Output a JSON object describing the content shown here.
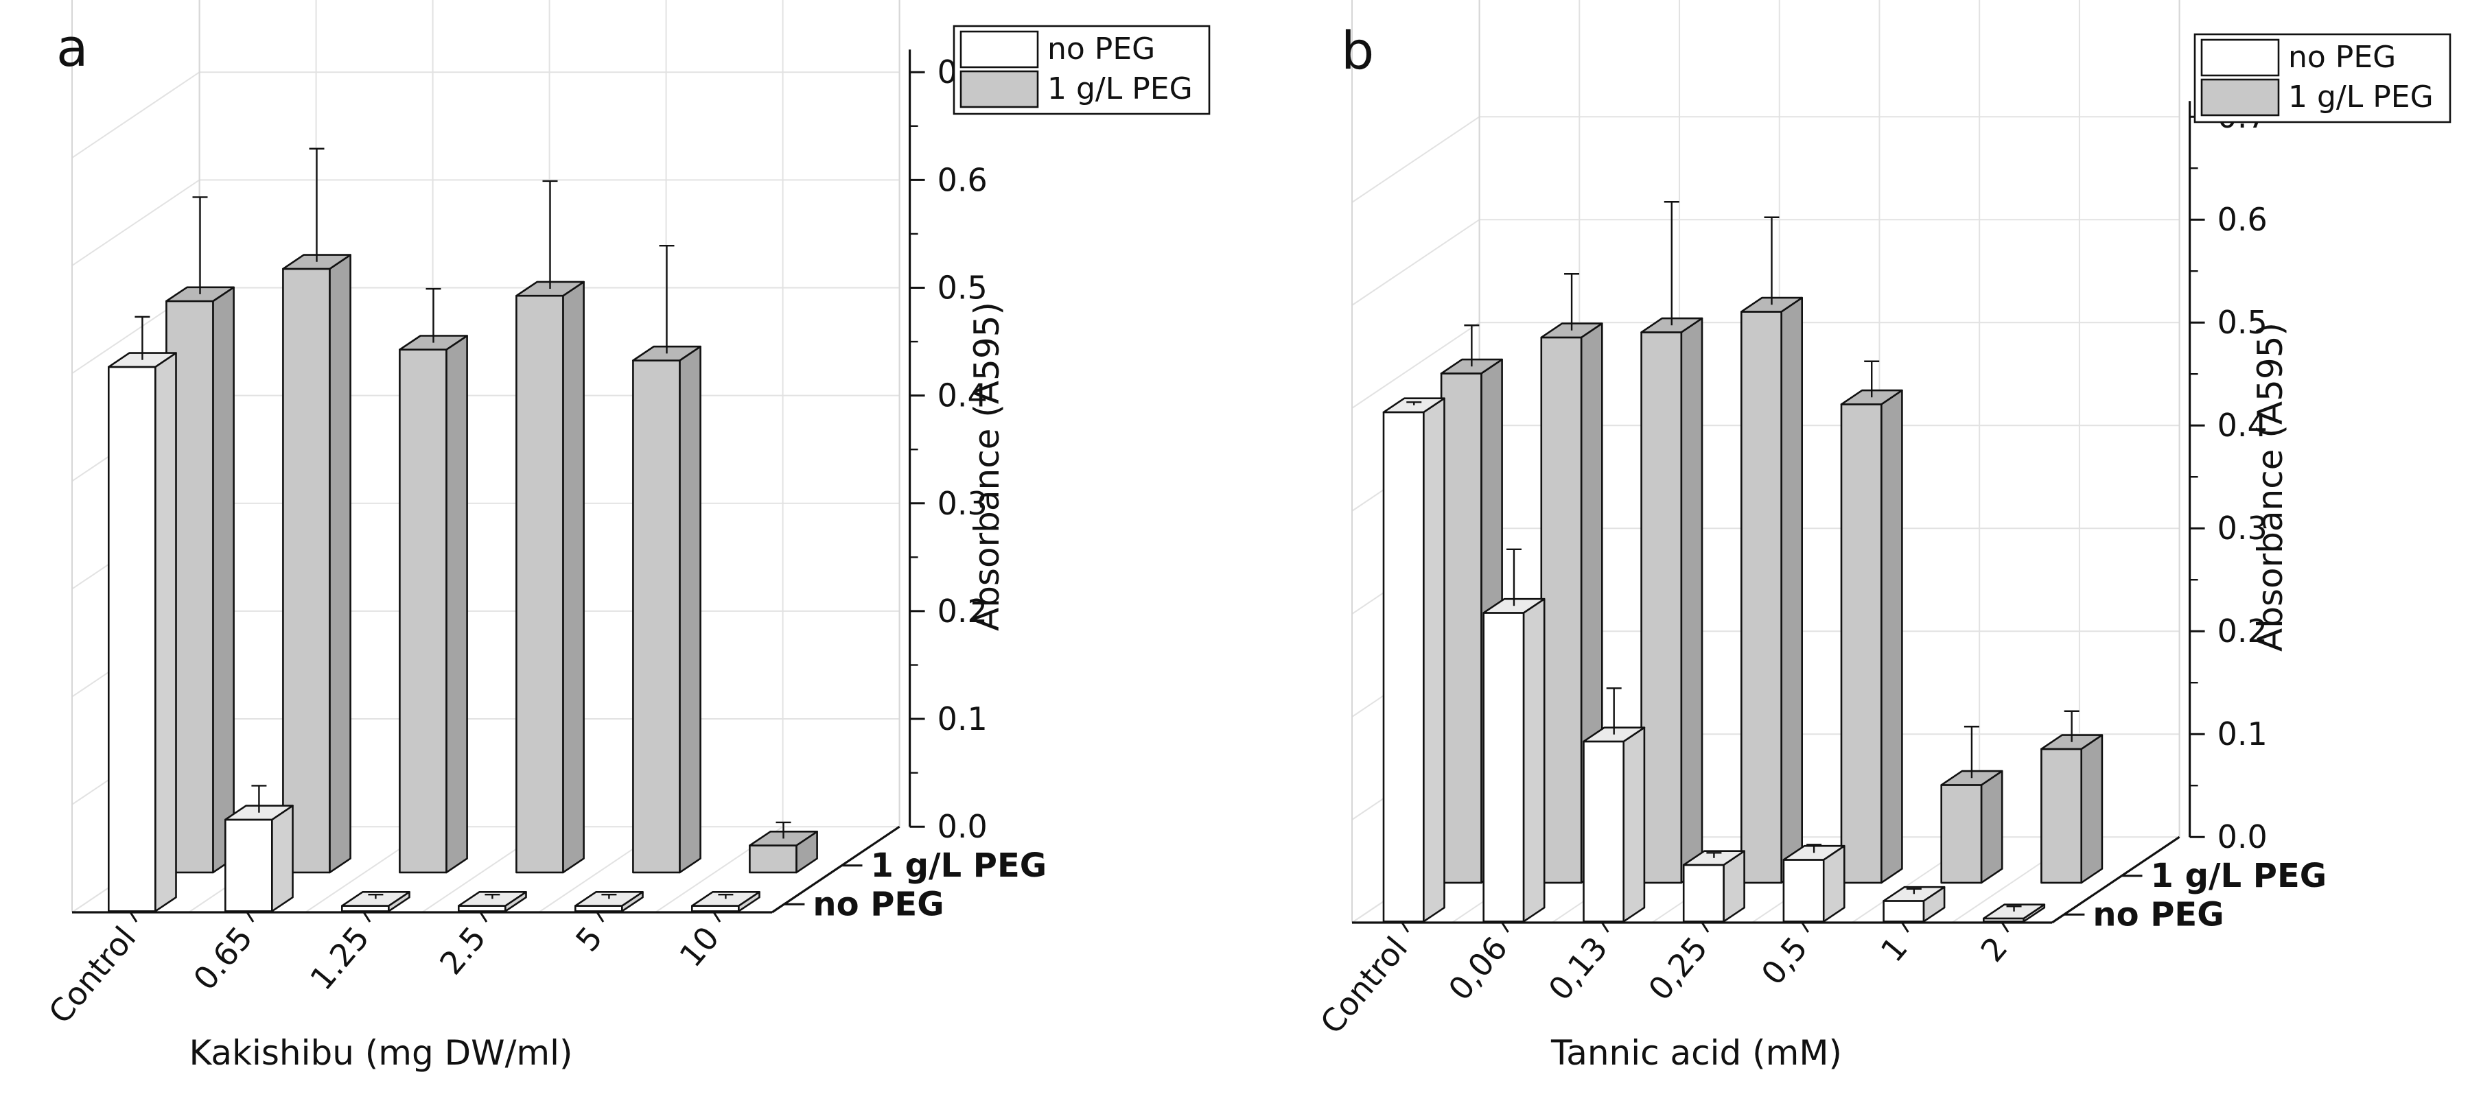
{
  "chart_data": [
    {
      "type": "bar",
      "panel_label": "a",
      "categories": [
        "Control",
        "0.65",
        "1.25",
        "2.5",
        "5",
        "10"
      ],
      "xlabel": "Kakishibu (mg DW/ml)",
      "ylabel": "Absorbance (A595)",
      "ylim": [
        0,
        0.7
      ],
      "yticks": [
        "0.0",
        "0.1",
        "0.2",
        "0.3",
        "0.4",
        "0.5",
        "0.6",
        "0.7"
      ],
      "depth_labels": [
        "1 g/L PEG",
        "no PEG"
      ],
      "series": [
        {
          "name": "no PEG",
          "values": [
            0.505,
            0.085,
            0.005,
            0.005,
            0.005,
            0.005
          ],
          "errors": [
            0.04,
            0.025,
            0.004,
            0.004,
            0.004,
            0.004
          ],
          "color": "#ffffff"
        },
        {
          "name": "1 g/L PEG",
          "values": [
            0.53,
            0.56,
            0.485,
            0.535,
            0.475,
            0.025
          ],
          "errors": [
            0.09,
            0.105,
            0.05,
            0.1,
            0.1,
            0.015
          ],
          "color": "#c8c8c8"
        }
      ],
      "legend": {
        "position": "top-right",
        "entries": [
          "no PEG",
          "1 g/L PEG"
        ]
      },
      "grid": true
    },
    {
      "type": "bar",
      "panel_label": "b",
      "categories": [
        "Control",
        "0,06",
        "0,13",
        "0,25",
        "0,5",
        "1",
        "2"
      ],
      "xlabel": "Tannic acid (mM)",
      "ylabel": "Absorbance (A595)",
      "ylim": [
        0,
        0.7
      ],
      "yticks": [
        "0.0",
        "0.1",
        "0.2",
        "0.3",
        "0.4",
        "0.5",
        "0.6",
        "0.7"
      ],
      "depth_labels": [
        "1 g/L PEG",
        "no PEG"
      ],
      "series": [
        {
          "name": "no PEG",
          "values": [
            0.495,
            0.3,
            0.175,
            0.055,
            0.06,
            0.02,
            0.003
          ],
          "errors": [
            0.003,
            0.055,
            0.045,
            0.005,
            0.008,
            0.005,
            0.005
          ],
          "color": "#ffffff"
        },
        {
          "name": "1 g/L PEG",
          "values": [
            0.495,
            0.53,
            0.535,
            0.555,
            0.465,
            0.095,
            0.13
          ],
          "errors": [
            0.04,
            0.055,
            0.12,
            0.085,
            0.035,
            0.05,
            0.03
          ],
          "color": "#c8c8c8"
        }
      ],
      "legend": {
        "position": "top-right",
        "entries": [
          "no PEG",
          "1 g/L PEG"
        ]
      },
      "grid": true
    }
  ]
}
